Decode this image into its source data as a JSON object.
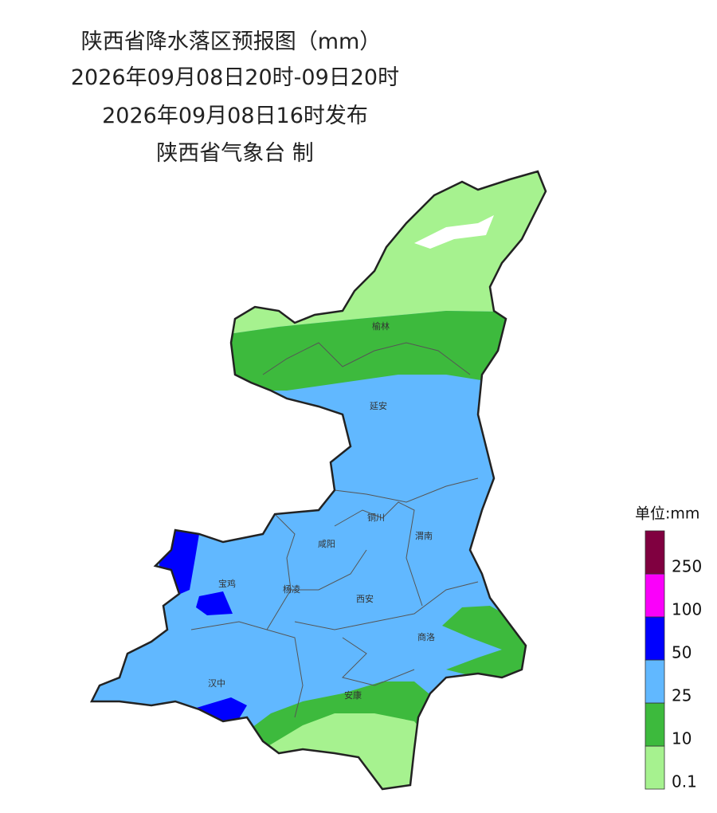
{
  "header": {
    "title": "陕西省降水落区预报图（mm）",
    "period": "2026年09月08日20时-09日20时",
    "issued": "2026年09月08日16时发布",
    "producer": "陕西省气象台 制"
  },
  "cities": [
    "榆林",
    "延安",
    "铜川",
    "咸阳",
    "渭南",
    "宝鸡",
    "杨凌",
    "西安",
    "商洛",
    "汉中",
    "安康"
  ],
  "legend": {
    "unit": "单位:mm",
    "labels": [
      "0.1",
      "10",
      "25",
      "50",
      "100",
      "250"
    ],
    "colors": [
      "#a6f28f",
      "#3dba3d",
      "#61b8ff",
      "#0000fe",
      "#fa00fa",
      "#800040"
    ]
  }
}
